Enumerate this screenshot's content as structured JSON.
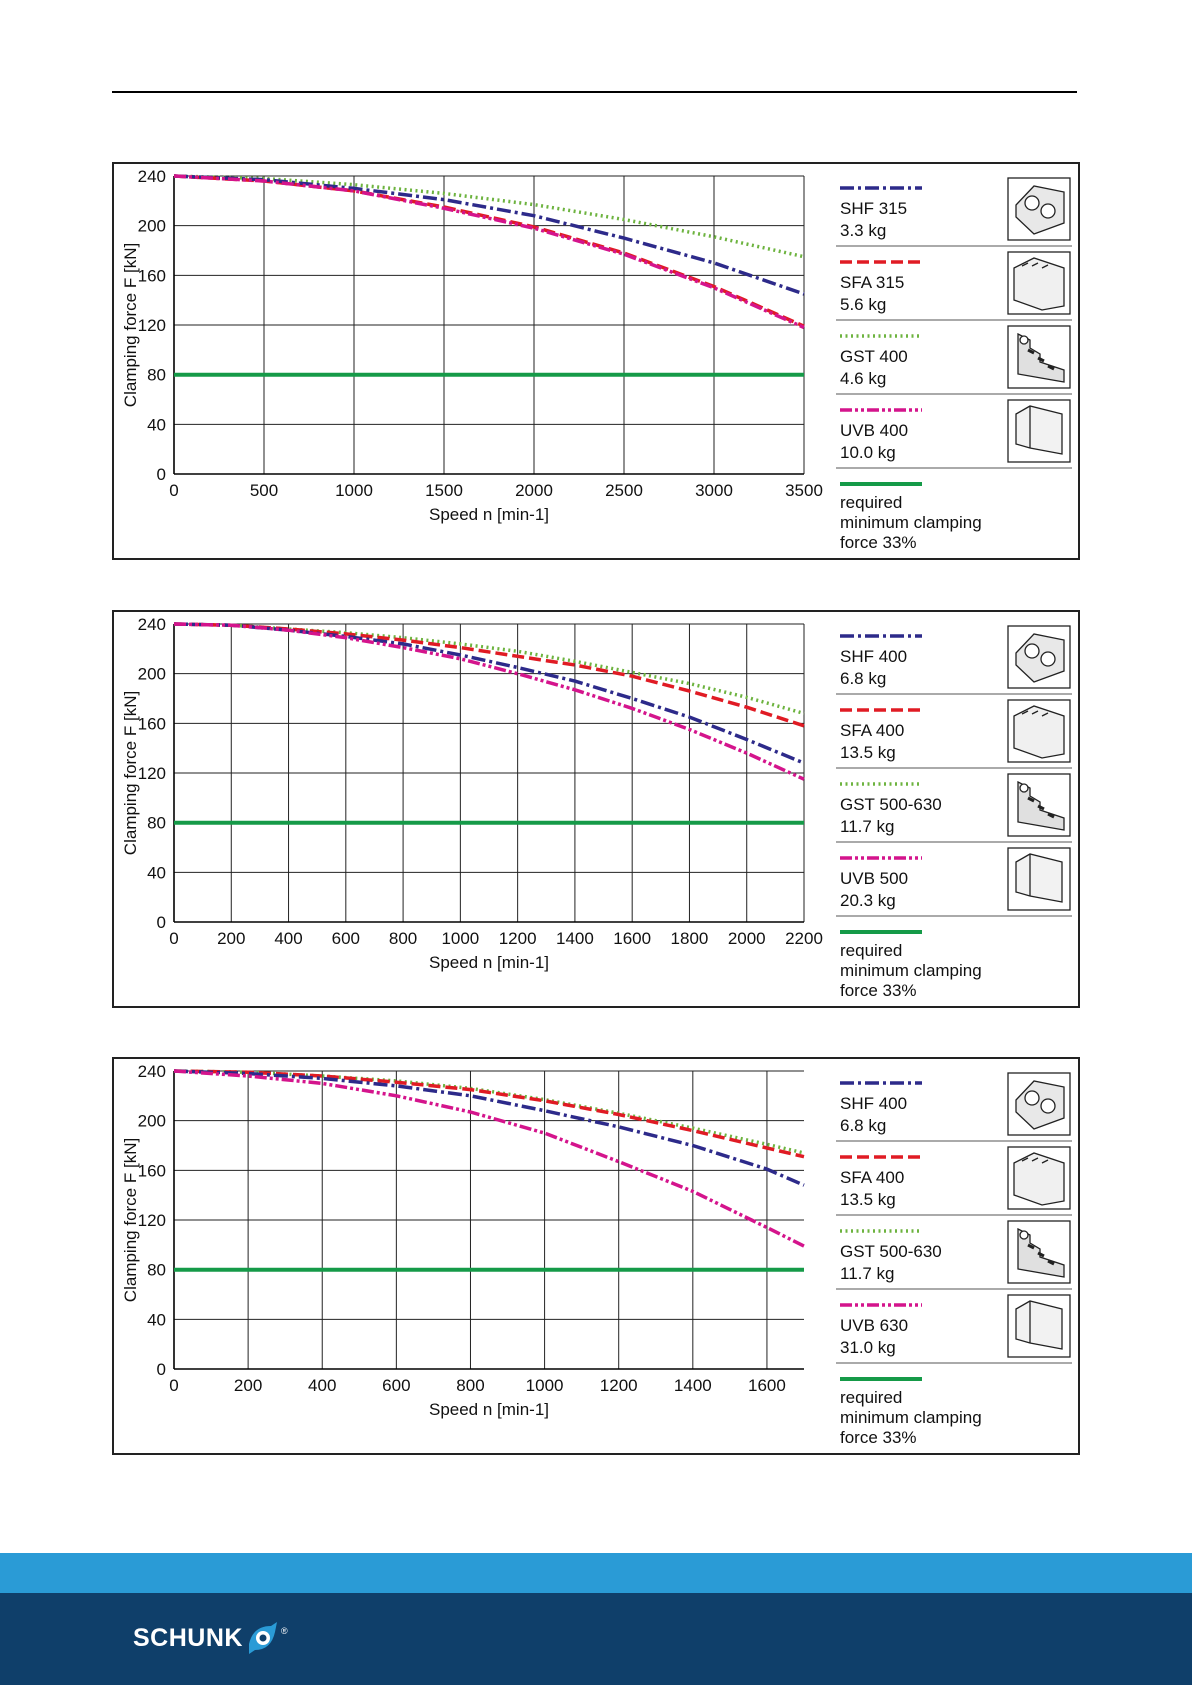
{
  "colors": {
    "shf": "#2d2a8a",
    "sfa": "#e01b24",
    "gst": "#6db33f",
    "uvb": "#d4148c",
    "min": "#159a48",
    "footer_dark": "#0f3f6a",
    "footer_light": "#2a9bd6"
  },
  "footer": {
    "brand": "SCHUNK",
    "registered": "®"
  },
  "chart_data": [
    {
      "type": "line",
      "xlabel": "Speed n [min-1]",
      "ylabel": "Clamping force F [kN]",
      "xlim": [
        0,
        3500
      ],
      "ylim": [
        0,
        240
      ],
      "xticks": [
        0,
        500,
        1000,
        1500,
        2000,
        2500,
        3000,
        3500
      ],
      "yticks": [
        0,
        40,
        80,
        120,
        160,
        200,
        240
      ],
      "grid": true,
      "x": [
        0,
        500,
        1000,
        1500,
        2000,
        2500,
        3000,
        3500
      ],
      "series": [
        {
          "key": "shf",
          "name": "SHF 315",
          "mass": "3.3 kg",
          "style": "dashdot",
          "values": [
            240,
            237,
            230,
            221,
            208,
            190,
            170,
            145
          ]
        },
        {
          "key": "sfa",
          "name": "SFA 315",
          "mass": "5.6 kg",
          "style": "dashed",
          "values": [
            240,
            236,
            228,
            215,
            199,
            178,
            151,
            119
          ]
        },
        {
          "key": "gst",
          "name": "GST 400",
          "mass": "4.6 kg",
          "style": "dotted",
          "values": [
            240,
            238,
            233,
            226,
            217,
            205,
            191,
            175
          ]
        },
        {
          "key": "uvb",
          "name": "UVB 400",
          "mass": "10.0 kg",
          "style": "dashdotdot",
          "values": [
            240,
            236,
            228,
            214,
            198,
            177,
            150,
            118
          ]
        },
        {
          "key": "min",
          "name": "required\nminimum clamping\nforce 33%",
          "mass": "",
          "style": "solid",
          "values": [
            80,
            80,
            80,
            80,
            80,
            80,
            80,
            80
          ]
        }
      ]
    },
    {
      "type": "line",
      "xlabel": "Speed n [min-1]",
      "ylabel": "Clamping force F [kN]",
      "xlim": [
        0,
        2200
      ],
      "ylim": [
        0,
        240
      ],
      "xticks": [
        0,
        200,
        400,
        600,
        800,
        1000,
        1200,
        1400,
        1600,
        1800,
        2000,
        2200
      ],
      "yticks": [
        0,
        40,
        80,
        120,
        160,
        200,
        240
      ],
      "grid": true,
      "x": [
        0,
        200,
        400,
        600,
        800,
        1000,
        1200,
        1400,
        1600,
        1800,
        2000,
        2200
      ],
      "series": [
        {
          "key": "shf",
          "name": "SHF 400",
          "mass": "6.8 kg",
          "style": "dashdot",
          "values": [
            240,
            239,
            235,
            230,
            224,
            215,
            205,
            194,
            180,
            165,
            147,
            128
          ]
        },
        {
          "key": "sfa",
          "name": "SFA 400",
          "mass": "13.5 kg",
          "style": "dashed",
          "values": [
            240,
            239,
            236,
            232,
            227,
            221,
            214,
            207,
            198,
            186,
            173,
            158
          ]
        },
        {
          "key": "gst",
          "name": "GST 500-630",
          "mass": "11.7 kg",
          "style": "dotted",
          "values": [
            240,
            239,
            236,
            233,
            229,
            224,
            218,
            210,
            201,
            192,
            181,
            168
          ]
        },
        {
          "key": "uvb",
          "name": "UVB 500",
          "mass": "20.3 kg",
          "style": "dashdotdot",
          "values": [
            240,
            239,
            235,
            229,
            221,
            212,
            200,
            187,
            172,
            155,
            136,
            115
          ]
        },
        {
          "key": "min",
          "name": "required\nminimum clamping\nforce 33%",
          "mass": "",
          "style": "solid",
          "values": [
            80,
            80,
            80,
            80,
            80,
            80,
            80,
            80,
            80,
            80,
            80,
            80
          ]
        }
      ]
    },
    {
      "type": "line",
      "xlabel": "Speed n [min-1]",
      "ylabel": "Clamping force F [kN]",
      "xlim": [
        0,
        1700
      ],
      "ylim": [
        0,
        240
      ],
      "xticks": [
        0,
        200,
        400,
        600,
        800,
        1000,
        1200,
        1400,
        1600
      ],
      "yticks": [
        0,
        40,
        80,
        120,
        160,
        200,
        240
      ],
      "grid": true,
      "x": [
        0,
        200,
        400,
        600,
        800,
        1000,
        1200,
        1400,
        1600,
        1700
      ],
      "series": [
        {
          "key": "shf",
          "name": "SHF 400",
          "mass": "6.8 kg",
          "style": "dashdot",
          "values": [
            240,
            238,
            234,
            228,
            220,
            208,
            195,
            180,
            161,
            148
          ]
        },
        {
          "key": "sfa",
          "name": "SFA 400",
          "mass": "13.5 kg",
          "style": "dashed",
          "values": [
            240,
            239,
            236,
            231,
            225,
            216,
            205,
            192,
            178,
            171
          ]
        },
        {
          "key": "gst",
          "name": "GST 500-630",
          "mass": "11.7 kg",
          "style": "dotted",
          "values": [
            240,
            239,
            236,
            232,
            226,
            217,
            206,
            194,
            181,
            174
          ]
        },
        {
          "key": "uvb",
          "name": "UVB 630",
          "mass": "31.0 kg",
          "style": "dashdotdot",
          "values": [
            240,
            236,
            230,
            220,
            207,
            190,
            167,
            143,
            114,
            99
          ]
        },
        {
          "key": "min",
          "name": "required\nminimum clamping\nforce 33%",
          "mass": "",
          "style": "solid",
          "values": [
            80,
            80,
            80,
            80,
            80,
            80,
            80,
            80,
            80,
            80
          ]
        }
      ]
    }
  ]
}
